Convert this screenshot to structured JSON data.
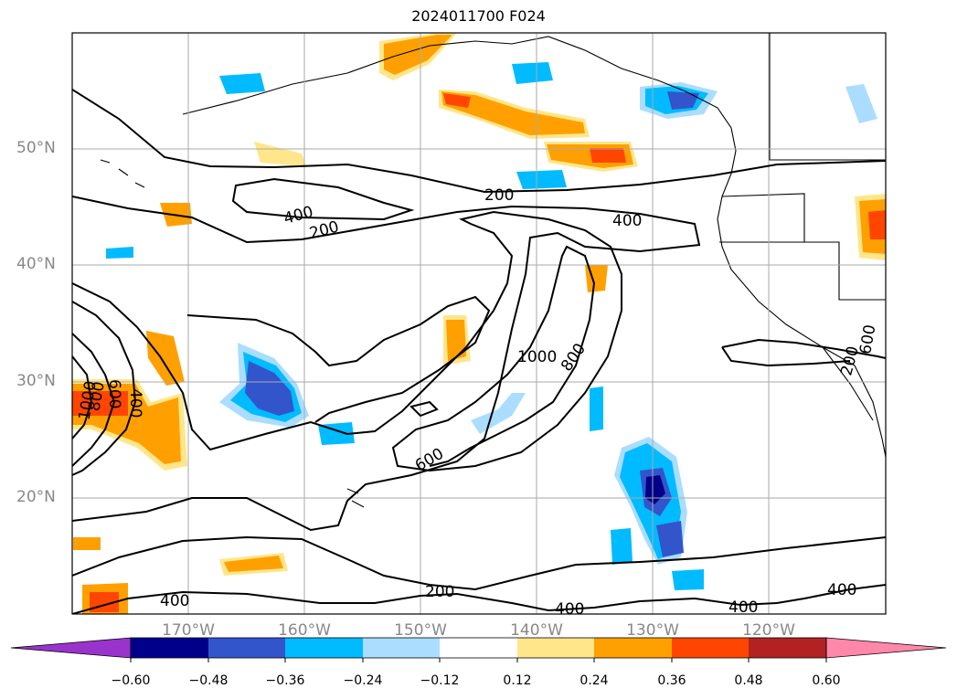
{
  "title": "2024011700 F024",
  "map": {
    "lat_labels": [
      "50°N",
      "40°N",
      "30°N",
      "20°N"
    ],
    "lon_labels": [
      "170°W",
      "160°W",
      "150°W",
      "140°W",
      "130°W",
      "120°W"
    ],
    "contour_labels": [
      "200",
      "400",
      "400",
      "200",
      "400",
      "1000",
      "800",
      "600",
      "600",
      "800",
      "1000",
      "400",
      "200",
      "400",
      "400",
      "400",
      "600",
      "200"
    ]
  },
  "colorbar": {
    "tick_labels": [
      "−0.60",
      "−0.48",
      "−0.36",
      "−0.24",
      "−0.12",
      "0.12",
      "0.24",
      "0.36",
      "0.48",
      "0.60"
    ],
    "colors": [
      "#9933cc",
      "#00008b",
      "#3355cc",
      "#00bbff",
      "#aaddff",
      "#ffffff",
      "#ffe68a",
      "#ffa000",
      "#ff4500",
      "#b22222",
      "#ff88aa"
    ]
  }
}
